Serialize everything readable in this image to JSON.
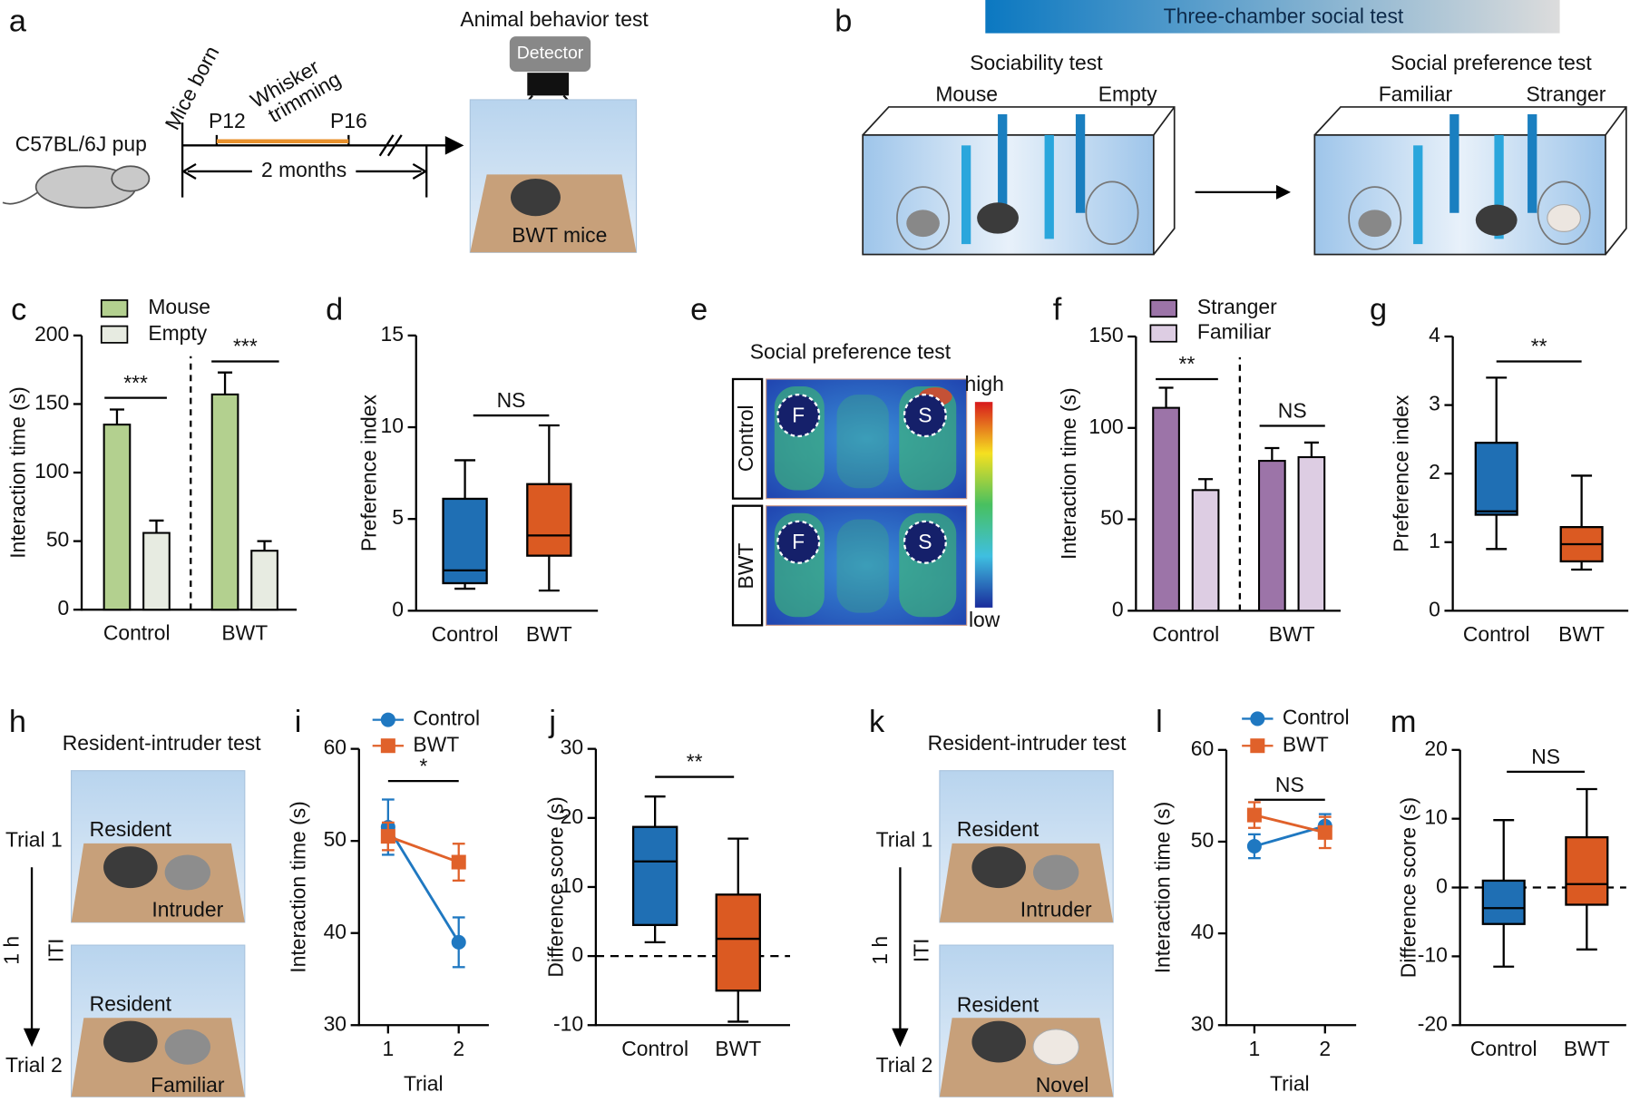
{
  "illustrations": {
    "a": {
      "label": "a",
      "title": "Animal behavior test",
      "detector": "Detector",
      "strain": "C57BL/6J pup",
      "born": "Mice born",
      "trimming": [
        "Whisker",
        "trimming"
      ],
      "start": "P12",
      "end": "P16",
      "duration": "2 months",
      "mice": "BWT  mice"
    },
    "b": {
      "label": "b",
      "banner": "Three-chamber social test",
      "tests": [
        {
          "title": "Sociability test",
          "left": "Mouse",
          "right": "Empty"
        },
        {
          "title": "Social preference test",
          "left": "Familiar",
          "right": "Stranger"
        }
      ]
    },
    "e": {
      "label": "e",
      "title": "Social preference test",
      "rows": [
        "Control",
        "BWT"
      ],
      "marks": [
        "F",
        "S"
      ],
      "scale": [
        "high",
        "low"
      ]
    },
    "h": {
      "label": "h",
      "title": "Resident-intruder test",
      "trials": [
        "Trial 1",
        "Trial 2"
      ],
      "interval": "1 h",
      "iti": "ITI",
      "pairs": [
        [
          "Resident",
          "Intruder"
        ],
        [
          "Resident",
          "Familiar"
        ]
      ]
    },
    "k": {
      "label": "k",
      "title": "Resident-intruder test",
      "trials": [
        "Trial 1",
        "Trial 2"
      ],
      "interval": "1 h",
      "iti": "ITI",
      "pairs": [
        [
          "Resident",
          "Intruder"
        ],
        [
          "Resident",
          "Novel"
        ]
      ]
    }
  },
  "chart_data": [
    {
      "type": "bar",
      "label": "c",
      "ylabel": "Interaction time (s)",
      "categories": [
        "Control",
        "BWT"
      ],
      "series": [
        {
          "name": "Mouse",
          "color": "#b3d08f",
          "values": [
            135,
            157
          ],
          "errors": [
            11,
            16
          ]
        },
        {
          "name": "Empty",
          "color": "#e7ebe1",
          "values": [
            56,
            43
          ],
          "errors": [
            9,
            7
          ]
        }
      ],
      "ylim": [
        0,
        200
      ],
      "yticks": [
        0,
        50,
        100,
        150,
        200
      ],
      "divider": true,
      "annotations": [
        "***",
        "***"
      ]
    },
    {
      "type": "box",
      "label": "d",
      "ylabel": "Preference index",
      "categories": [
        "Control",
        "BWT"
      ],
      "boxes": [
        {
          "min": 1.2,
          "q1": 1.5,
          "median": 2.2,
          "q3": 6.1,
          "max": 8.2,
          "color": "#1f6fb4"
        },
        {
          "min": 1.1,
          "q1": 3.0,
          "median": 4.1,
          "q3": 6.9,
          "max": 10.1,
          "color": "#db5a22"
        }
      ],
      "ylim": [
        0,
        15
      ],
      "yticks": [
        0,
        5,
        10,
        15
      ],
      "annotations": [
        "NS"
      ]
    },
    {
      "type": "bar",
      "label": "f",
      "ylabel": "Interaction time (s)",
      "categories": [
        "Control",
        "BWT"
      ],
      "series": [
        {
          "name": "Stranger",
          "color": "#9c74a8",
          "values": [
            111,
            82
          ],
          "errors": [
            11,
            7
          ]
        },
        {
          "name": "Familiar",
          "color": "#ddcde3",
          "values": [
            66,
            84
          ],
          "errors": [
            6,
            8
          ]
        }
      ],
      "ylim": [
        0,
        150
      ],
      "yticks": [
        0,
        50,
        100,
        150
      ],
      "divider": true,
      "annotations": [
        "**",
        "NS"
      ]
    },
    {
      "type": "box",
      "label": "g",
      "ylabel": "Preference index",
      "categories": [
        "Control",
        "BWT"
      ],
      "boxes": [
        {
          "min": 0.9,
          "q1": 1.4,
          "median": 1.45,
          "q3": 2.45,
          "max": 3.4,
          "color": "#1f6fb4"
        },
        {
          "min": 0.6,
          "q1": 0.72,
          "median": 0.97,
          "q3": 1.22,
          "max": 1.97,
          "color": "#db5a22"
        }
      ],
      "ylim": [
        0,
        4
      ],
      "yticks": [
        0,
        1,
        2,
        3,
        4
      ],
      "annotations": [
        "**"
      ]
    },
    {
      "type": "line",
      "label": "i",
      "ylabel": "Interaction time (s)",
      "xlabel": "Trial",
      "categories": [
        "1",
        "2"
      ],
      "series": [
        {
          "name": "Control",
          "color": "#1f78c1",
          "marker": "circle",
          "values": [
            51.5,
            39
          ],
          "errors": [
            3,
            2.7
          ]
        },
        {
          "name": "BWT",
          "color": "#e0612a",
          "marker": "square",
          "values": [
            50.5,
            47.7
          ],
          "errors": [
            1.5,
            2
          ]
        }
      ],
      "ylim": [
        30,
        60
      ],
      "yticks": [
        30,
        40,
        50,
        60
      ],
      "annotations": [
        "*"
      ]
    },
    {
      "type": "box",
      "label": "j",
      "ylabel": "Difference score (s)",
      "categories": [
        "Control",
        "BWT"
      ],
      "boxes": [
        {
          "min": 2,
          "q1": 4.5,
          "median": 13.7,
          "q3": 18.7,
          "max": 23.1,
          "color": "#1f6fb4"
        },
        {
          "min": -9.5,
          "q1": -5,
          "median": 2.5,
          "q3": 8.9,
          "max": 17,
          "color": "#db5a22"
        }
      ],
      "ylim": [
        -10,
        30
      ],
      "yticks": [
        -10,
        0,
        10,
        20,
        30
      ],
      "zero_line": true,
      "annotations": [
        "**"
      ]
    },
    {
      "type": "line",
      "label": "l",
      "ylabel": "Interaction time (s)",
      "xlabel": "Trial",
      "categories": [
        "1",
        "2"
      ],
      "series": [
        {
          "name": "Control",
          "color": "#1f78c1",
          "marker": "circle",
          "values": [
            49.5,
            51.7
          ],
          "errors": [
            1.3,
            1.3
          ]
        },
        {
          "name": "BWT",
          "color": "#e0612a",
          "marker": "square",
          "values": [
            52.9,
            51
          ],
          "errors": [
            1.4,
            1.7
          ]
        }
      ],
      "ylim": [
        30,
        60
      ],
      "yticks": [
        30,
        40,
        50,
        60
      ],
      "annotations": [
        "NS"
      ]
    },
    {
      "type": "box",
      "label": "m",
      "ylabel": "Difference score (s)",
      "categories": [
        "Control",
        "BWT"
      ],
      "boxes": [
        {
          "min": -11.5,
          "q1": -5.3,
          "median": -3,
          "q3": 1,
          "max": 9.8,
          "color": "#1f6fb4"
        },
        {
          "min": -9,
          "q1": -2.5,
          "median": 0.5,
          "q3": 7.3,
          "max": 14.3,
          "color": "#db5a22"
        }
      ],
      "ylim": [
        -20,
        20
      ],
      "yticks": [
        -20,
        -10,
        0,
        10,
        20
      ],
      "zero_line": true,
      "annotations": [
        "NS"
      ]
    }
  ]
}
